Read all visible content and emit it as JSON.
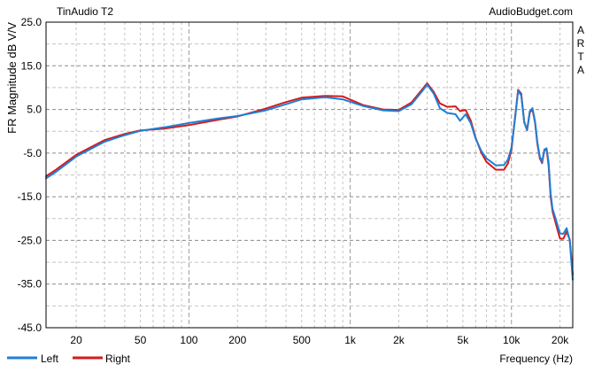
{
  "header": {
    "left_title": "TinAudio T2",
    "right_title": "AudioBudget.com",
    "side_label": [
      "A",
      "R",
      "T",
      "A"
    ]
  },
  "chart_data": {
    "type": "line",
    "title": "TinAudio T2",
    "xlabel": "Frequency (Hz)",
    "ylabel": "FR Magnitude dB V/V",
    "x_scale": "log",
    "xlim": [
      13,
      24000
    ],
    "ylim": [
      -45,
      25
    ],
    "grid": true,
    "legend_position": "bottom-left",
    "y_ticks": [
      25,
      15,
      5,
      -5,
      -15,
      -25,
      -35,
      -45
    ],
    "y_tick_labels": [
      "25.0",
      "15.0",
      "5.0",
      "-5.0",
      "-15.0",
      "-25.0",
      "-35.0",
      "-45.0"
    ],
    "x_ticks": [
      20,
      50,
      100,
      200,
      500,
      1000,
      2000,
      5000,
      10000,
      20000
    ],
    "x_tick_labels": [
      "20",
      "50",
      "100",
      "200",
      "500",
      "1k",
      "2k",
      "5k",
      "10k",
      "20k"
    ],
    "series": [
      {
        "name": "Left",
        "color": "#1f7fd6",
        "x": [
          13,
          15,
          20,
          30,
          40,
          50,
          70,
          100,
          150,
          200,
          300,
          400,
          500,
          700,
          900,
          1200,
          1600,
          2000,
          2400,
          2800,
          3000,
          3300,
          3600,
          4000,
          4500,
          4800,
          5200,
          5600,
          6000,
          6500,
          7000,
          8000,
          9000,
          9500,
          10000,
          10500,
          11000,
          11500,
          12000,
          12500,
          13000,
          13500,
          14000,
          14500,
          15000,
          15500,
          16000,
          16500,
          17000,
          17500,
          18000,
          19000,
          20000,
          21000,
          22000,
          23000,
          24000
        ],
        "y": [
          -10.8,
          -9.3,
          -5.8,
          -2.4,
          -0.9,
          0.1,
          0.9,
          1.9,
          2.9,
          3.5,
          4.8,
          6.2,
          7.3,
          7.8,
          7.3,
          5.8,
          4.8,
          4.6,
          6.2,
          9.2,
          10.7,
          8.6,
          5.3,
          4.2,
          3.9,
          2.4,
          3.9,
          1.8,
          -1.7,
          -4.5,
          -6.2,
          -7.8,
          -7.7,
          -6.5,
          -3.8,
          2.5,
          9.3,
          8.2,
          2.0,
          0.3,
          4.6,
          5.3,
          2.3,
          -2.6,
          -5.8,
          -7.0,
          -4.2,
          -3.9,
          -7.1,
          -14.2,
          -17.8,
          -20.6,
          -23.4,
          -23.5,
          -22.2,
          -25.0,
          -34.0
        ]
      },
      {
        "name": "Right",
        "color": "#d61b1b",
        "x": [
          13,
          15,
          20,
          30,
          40,
          50,
          70,
          100,
          150,
          200,
          300,
          400,
          500,
          700,
          900,
          1200,
          1600,
          2000,
          2400,
          2800,
          3000,
          3300,
          3600,
          4000,
          4500,
          4800,
          5200,
          5600,
          6000,
          6500,
          7000,
          8000,
          9000,
          9500,
          10000,
          10500,
          11000,
          11500,
          12000,
          12500,
          13000,
          13500,
          14000,
          14500,
          15000,
          15500,
          16000,
          16500,
          17000,
          17500,
          18000,
          19000,
          20000,
          21000,
          22000,
          23000,
          24000
        ],
        "y": [
          -10.3,
          -8.8,
          -5.4,
          -2.0,
          -0.6,
          0.2,
          0.6,
          1.4,
          2.6,
          3.4,
          5.2,
          6.7,
          7.7,
          8.1,
          8.0,
          6.0,
          5.0,
          4.9,
          6.6,
          9.6,
          11.0,
          9.0,
          6.4,
          5.6,
          5.7,
          4.6,
          4.9,
          2.4,
          -1.5,
          -4.9,
          -7.0,
          -8.8,
          -8.8,
          -7.4,
          -4.4,
          2.8,
          9.5,
          8.6,
          2.2,
          0.2,
          4.3,
          5.0,
          2.0,
          -3.0,
          -6.2,
          -7.3,
          -4.4,
          -4.1,
          -7.8,
          -15.0,
          -18.4,
          -21.6,
          -24.6,
          -24.6,
          -23.0,
          -24.8,
          -32.8
        ]
      }
    ]
  }
}
